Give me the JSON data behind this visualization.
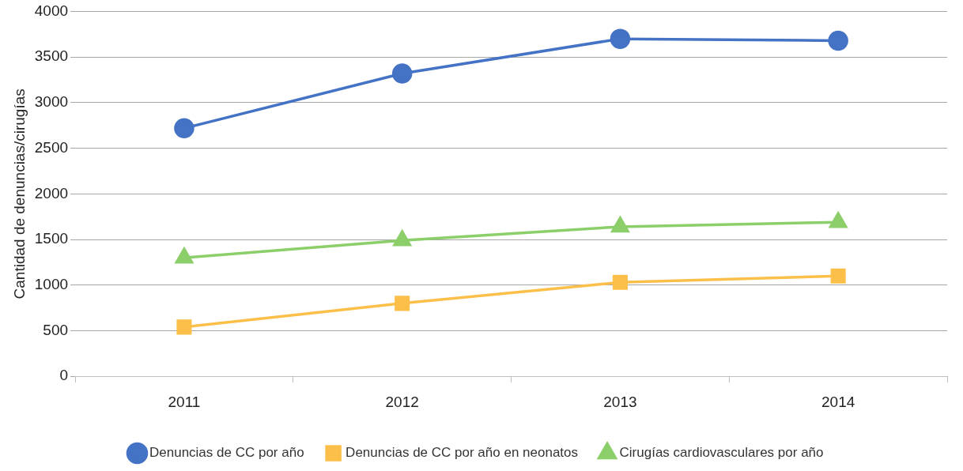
{
  "chart_data": {
    "type": "line",
    "ylabel": "Cantidad de denuncias/cirugías",
    "categories": [
      "2011",
      "2012",
      "2013",
      "2014"
    ],
    "series": [
      {
        "name": "Denuncias de CC por año",
        "color": "#4472c4",
        "marker": "circle",
        "values": [
          2720,
          3320,
          3700,
          3680
        ]
      },
      {
        "name": "Denuncias de CC por año en neonatos",
        "color": "#fbbf4a",
        "marker": "square",
        "values": [
          540,
          800,
          1030,
          1100
        ]
      },
      {
        "name": "Cirugías cardiovasculares por año",
        "color": "#8cce6a",
        "marker": "triangle",
        "values": [
          1300,
          1490,
          1640,
          1690
        ]
      }
    ],
    "ylim": [
      0,
      4000
    ],
    "yticks": [
      0,
      500,
      1000,
      1500,
      2000,
      2500,
      3000,
      3500,
      4000
    ],
    "grid": "y",
    "legend": "bottom",
    "line_style": "solid"
  }
}
